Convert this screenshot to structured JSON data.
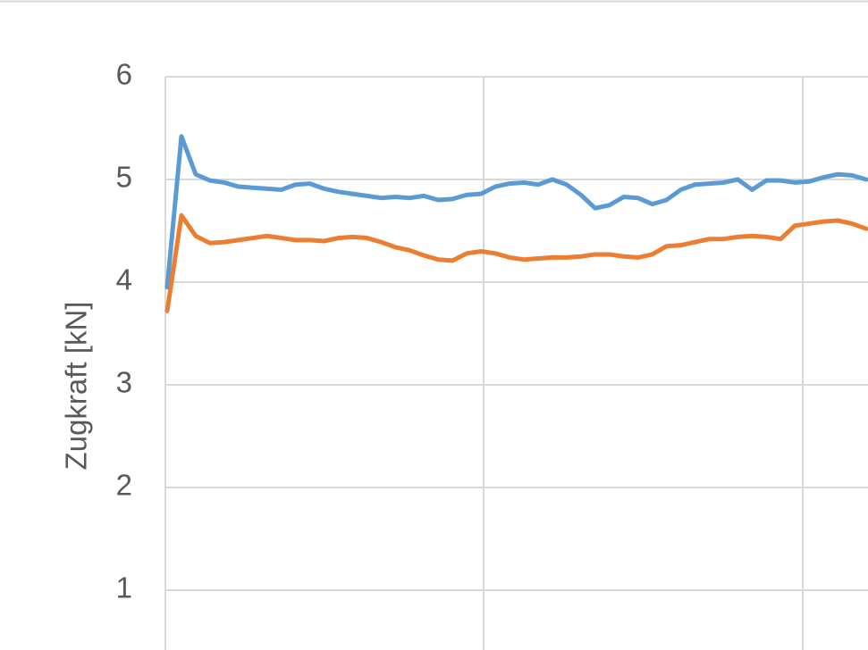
{
  "chart_data": {
    "type": "line",
    "y_label": "Zugkraft [kN]",
    "ylim": [
      0,
      6
    ],
    "yticks": [
      1,
      2,
      3,
      4,
      5,
      6
    ],
    "grid": true,
    "series": [
      {
        "color": "#5b9bd5",
        "values": [
          3.95,
          5.42,
          5.05,
          4.99,
          4.97,
          4.93,
          4.92,
          4.91,
          4.9,
          4.95,
          4.96,
          4.91,
          4.88,
          4.86,
          4.84,
          4.82,
          4.83,
          4.82,
          4.84,
          4.8,
          4.81,
          4.85,
          4.86,
          4.93,
          4.96,
          4.97,
          4.95,
          5.0,
          4.95,
          4.85,
          4.72,
          4.75,
          4.83,
          4.82,
          4.76,
          4.8,
          4.9,
          4.95,
          4.96,
          4.97,
          5.0,
          4.9,
          4.99,
          4.99,
          4.97,
          4.98,
          5.02,
          5.05,
          5.04,
          5.0
        ]
      },
      {
        "color": "#ed7d31",
        "values": [
          3.72,
          4.65,
          4.45,
          4.38,
          4.39,
          4.41,
          4.43,
          4.45,
          4.43,
          4.41,
          4.41,
          4.4,
          4.43,
          4.44,
          4.43,
          4.39,
          4.34,
          4.31,
          4.26,
          4.22,
          4.21,
          4.28,
          4.3,
          4.28,
          4.24,
          4.22,
          4.23,
          4.24,
          4.24,
          4.25,
          4.27,
          4.27,
          4.25,
          4.24,
          4.27,
          4.35,
          4.36,
          4.39,
          4.42,
          4.42,
          4.44,
          4.45,
          4.44,
          4.42,
          4.55,
          4.57,
          4.59,
          4.6,
          4.57,
          4.52
        ]
      }
    ]
  }
}
